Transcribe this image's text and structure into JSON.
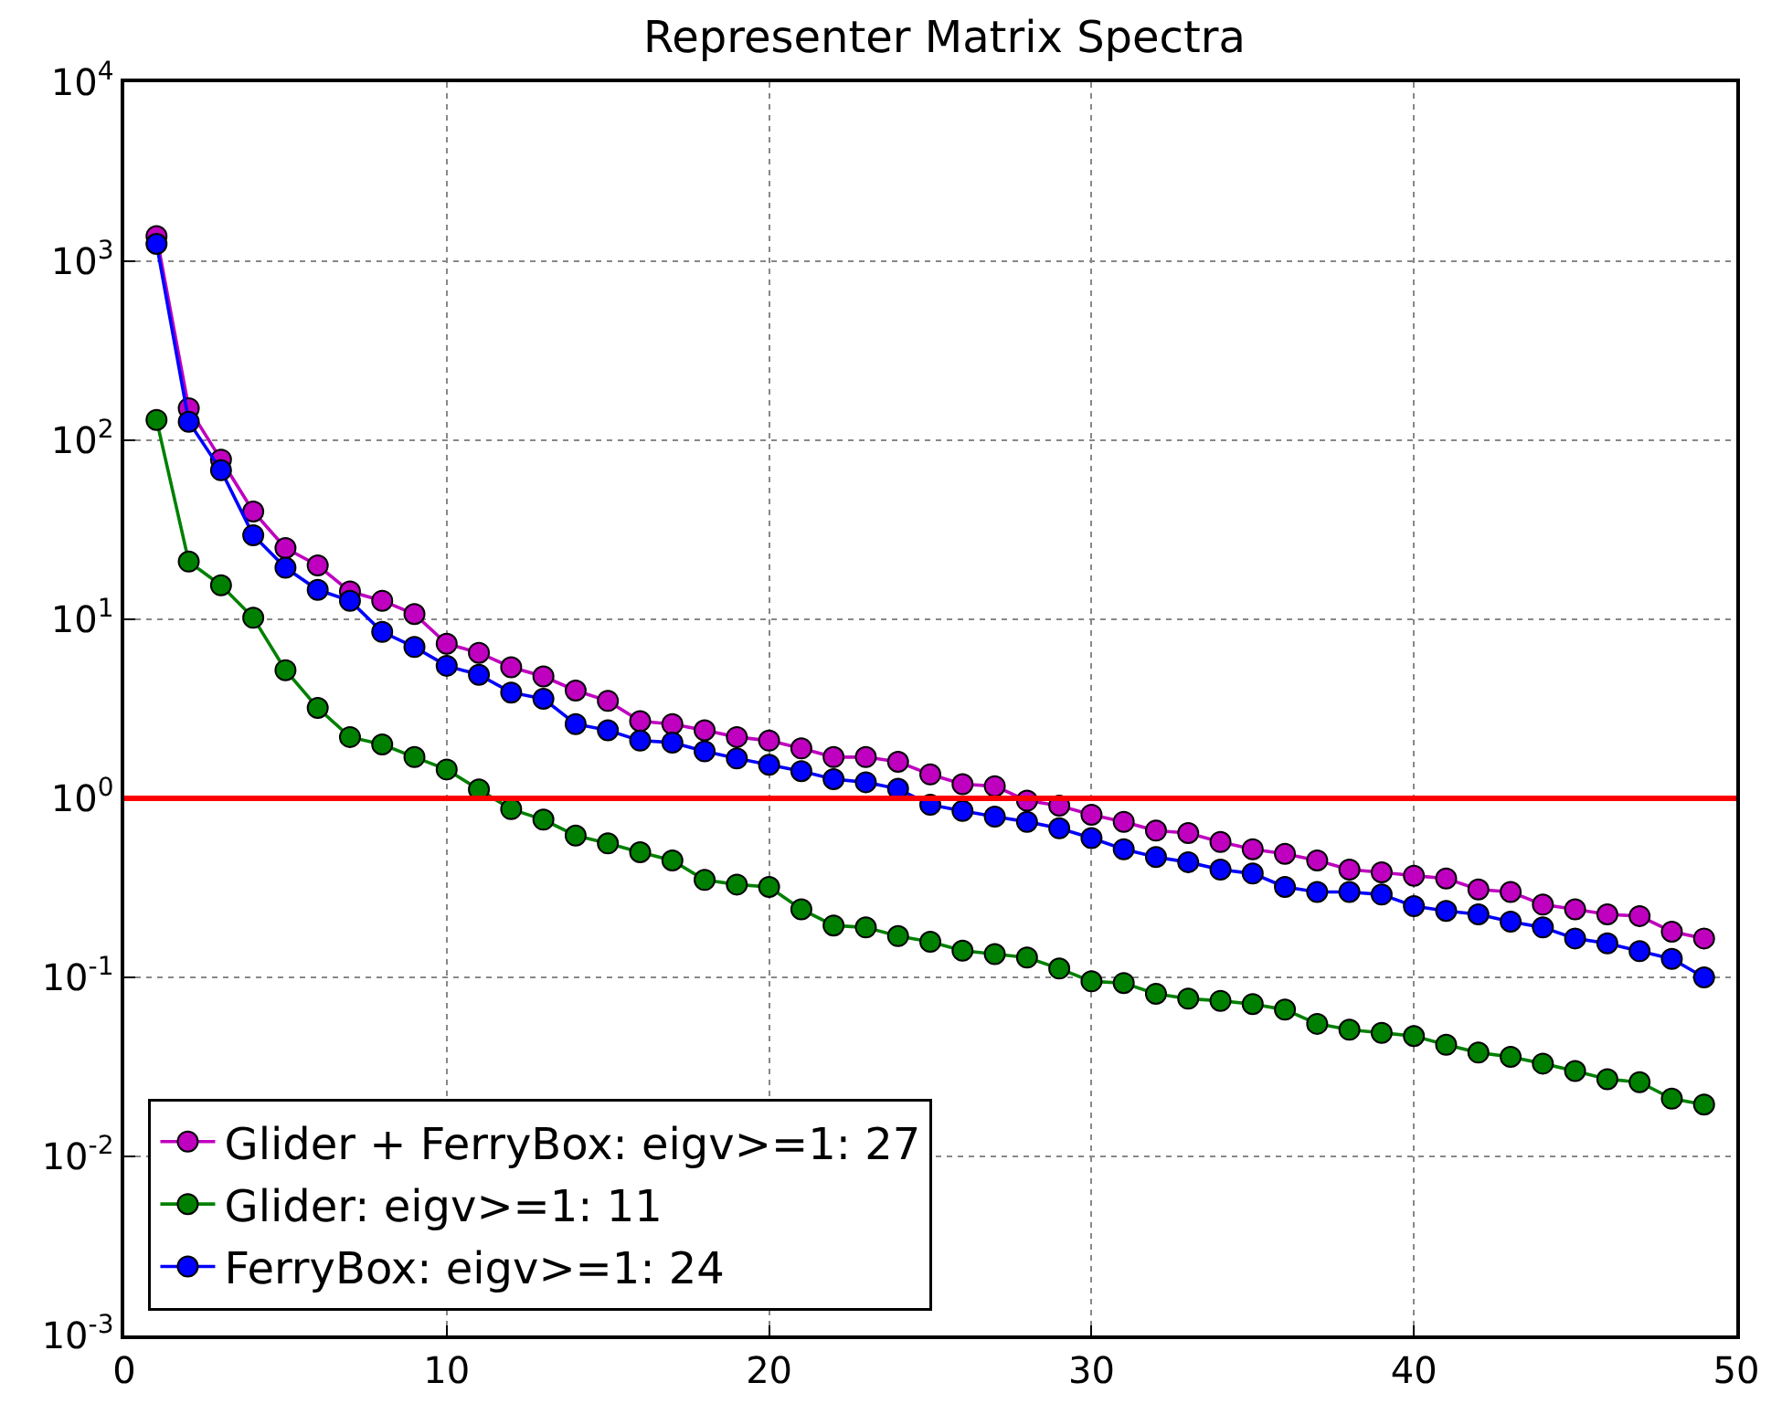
{
  "chart_data": {
    "type": "line",
    "title": "Representer Matrix Spectra",
    "x": [
      1,
      2,
      3,
      4,
      5,
      6,
      7,
      8,
      9,
      10,
      11,
      12,
      13,
      14,
      15,
      16,
      17,
      18,
      19,
      20,
      21,
      22,
      23,
      24,
      25,
      26,
      27,
      28,
      29,
      30,
      31,
      32,
      33,
      34,
      35,
      36,
      37,
      38,
      39,
      40,
      41,
      42,
      43,
      44,
      45,
      46,
      47,
      48,
      49
    ],
    "series": [
      {
        "name": "Glider + FerryBox: eigv>=1: 27",
        "color": "#bf00bf",
        "values": [
          1380,
          151,
          78,
          40,
          25,
          20,
          14.3,
          12.7,
          10.7,
          7.3,
          6.5,
          5.4,
          4.8,
          4.0,
          3.5,
          2.7,
          2.6,
          2.4,
          2.2,
          2.1,
          1.9,
          1.7,
          1.7,
          1.6,
          1.36,
          1.2,
          1.17,
          0.97,
          0.91,
          0.81,
          0.74,
          0.66,
          0.64,
          0.57,
          0.52,
          0.49,
          0.45,
          0.4,
          0.386,
          0.37,
          0.357,
          0.31,
          0.3,
          0.255,
          0.24,
          0.225,
          0.22,
          0.18,
          0.165
        ]
      },
      {
        "name": "Glider: eigv>=1: 11",
        "color": "#008000",
        "values": [
          130,
          21,
          15.5,
          10.2,
          5.2,
          3.2,
          2.2,
          2.0,
          1.7,
          1.45,
          1.12,
          0.87,
          0.76,
          0.62,
          0.56,
          0.5,
          0.45,
          0.35,
          0.33,
          0.32,
          0.24,
          0.195,
          0.19,
          0.17,
          0.158,
          0.141,
          0.135,
          0.129,
          0.112,
          0.095,
          0.093,
          0.081,
          0.076,
          0.074,
          0.071,
          0.066,
          0.055,
          0.051,
          0.049,
          0.047,
          0.042,
          0.038,
          0.036,
          0.033,
          0.03,
          0.027,
          0.026,
          0.021,
          0.0195
        ]
      },
      {
        "name": "FerryBox: eigv>=1: 24",
        "color": "#0000ff",
        "values": [
          1250,
          127,
          68,
          29.5,
          19.4,
          14.6,
          12.7,
          8.5,
          7.0,
          5.5,
          4.9,
          3.9,
          3.6,
          2.6,
          2.4,
          2.1,
          2.05,
          1.83,
          1.67,
          1.54,
          1.42,
          1.28,
          1.23,
          1.13,
          0.92,
          0.85,
          0.79,
          0.74,
          0.68,
          0.6,
          0.52,
          0.47,
          0.44,
          0.4,
          0.38,
          0.32,
          0.3,
          0.3,
          0.29,
          0.25,
          0.235,
          0.225,
          0.205,
          0.19,
          0.165,
          0.155,
          0.14,
          0.127,
          0.1
        ]
      }
    ],
    "xlim": [
      0,
      50
    ],
    "xticks": [
      0,
      10,
      20,
      30,
      40,
      50
    ],
    "ylim": [
      0.001,
      10000
    ],
    "yticks": [
      {
        "value": 0.001,
        "label": "10$^{-3}$"
      },
      {
        "value": 0.01,
        "label": "10$^{-2}$"
      },
      {
        "value": 0.1,
        "label": "10$^{-1}$"
      },
      {
        "value": 1,
        "label": "10$^{0}$"
      },
      {
        "value": 10,
        "label": "10$^{1}$"
      },
      {
        "value": 100,
        "label": "10$^{2}$"
      },
      {
        "value": 1000,
        "label": "10$^{3}$"
      },
      {
        "value": 10000,
        "label": "10$^{4}$"
      }
    ],
    "log": "y",
    "grid": true,
    "legend": "bottom left",
    "marker": "circle",
    "line_style": "solid",
    "ref_lines": [
      {
        "axis": "y",
        "value": 1,
        "color": "#ff0000",
        "line_style": "solid"
      }
    ]
  }
}
